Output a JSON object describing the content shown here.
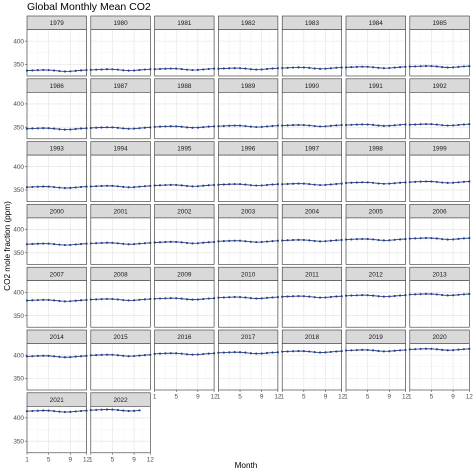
{
  "chart_data": {
    "type": "line",
    "title": "Global Monthly Mean CO2",
    "xlabel": "Month",
    "ylabel": "CO2 mole fraction (ppm)",
    "x_ticks": [
      1,
      5,
      9,
      12
    ],
    "y_ticks": [
      350,
      400
    ],
    "xlim": [
      1,
      12
    ],
    "ylim": [
      325,
      425
    ],
    "grid": true,
    "facet_by": "year",
    "series_color": "#27408b",
    "months": [
      1,
      2,
      3,
      4,
      5,
      6,
      7,
      8,
      9,
      10,
      11,
      12
    ],
    "series": [
      {
        "name": "1979",
        "values": [
          336.6,
          337.1,
          337.6,
          338.0,
          337.8,
          336.9,
          335.6,
          334.8,
          335.1,
          336.1,
          337.1,
          337.8
        ]
      },
      {
        "name": "1980",
        "values": [
          338.1,
          338.6,
          339.1,
          339.6,
          339.4,
          338.6,
          337.3,
          336.6,
          336.9,
          337.9,
          338.9,
          339.6
        ]
      },
      {
        "name": "1981",
        "values": [
          339.6,
          340.1,
          340.6,
          341.0,
          340.8,
          339.9,
          338.6,
          337.8,
          338.1,
          339.1,
          340.1,
          340.8
        ]
      },
      {
        "name": "1982",
        "values": [
          340.6,
          341.1,
          341.6,
          342.0,
          341.8,
          340.9,
          339.6,
          338.8,
          339.1,
          340.1,
          341.1,
          341.8
        ]
      },
      {
        "name": "1983",
        "values": [
          342.1,
          342.6,
          343.2,
          343.6,
          343.4,
          342.5,
          341.2,
          340.4,
          340.7,
          341.7,
          342.7,
          343.4
        ]
      },
      {
        "name": "1984",
        "values": [
          343.6,
          344.1,
          344.6,
          345.0,
          344.8,
          343.9,
          342.6,
          341.8,
          342.1,
          343.1,
          344.1,
          344.8
        ]
      },
      {
        "name": "1985",
        "values": [
          345.1,
          345.6,
          346.1,
          346.5,
          346.3,
          345.4,
          344.1,
          343.3,
          343.6,
          344.6,
          345.6,
          346.3
        ]
      },
      {
        "name": "1986",
        "values": [
          346.6,
          347.1,
          347.6,
          348.0,
          347.8,
          346.9,
          345.6,
          344.8,
          345.1,
          346.1,
          347.1,
          347.8
        ]
      },
      {
        "name": "1987",
        "values": [
          348.3,
          348.8,
          349.3,
          349.7,
          349.5,
          348.6,
          347.3,
          346.5,
          346.8,
          347.8,
          348.8,
          349.5
        ]
      },
      {
        "name": "1988",
        "values": [
          350.6,
          351.1,
          351.6,
          352.0,
          351.8,
          350.9,
          349.6,
          348.8,
          349.1,
          350.1,
          351.1,
          351.8
        ]
      },
      {
        "name": "1989",
        "values": [
          352.1,
          352.6,
          353.1,
          353.5,
          353.3,
          352.4,
          351.1,
          350.3,
          350.6,
          351.6,
          352.6,
          353.3
        ]
      },
      {
        "name": "1990",
        "values": [
          353.4,
          353.9,
          354.4,
          354.8,
          354.6,
          353.7,
          352.4,
          351.6,
          351.9,
          352.9,
          353.9,
          354.6
        ]
      },
      {
        "name": "1991",
        "values": [
          354.6,
          355.1,
          355.6,
          356.0,
          355.8,
          354.9,
          353.6,
          352.8,
          353.1,
          354.1,
          355.1,
          355.8
        ]
      },
      {
        "name": "1992",
        "values": [
          355.3,
          355.8,
          356.3,
          356.7,
          356.5,
          355.6,
          354.3,
          353.5,
          353.8,
          354.8,
          355.8,
          356.5
        ]
      },
      {
        "name": "1993",
        "values": [
          356.0,
          356.5,
          357.0,
          357.4,
          357.2,
          356.3,
          355.0,
          354.2,
          354.5,
          355.5,
          356.5,
          357.2
        ]
      },
      {
        "name": "1994",
        "values": [
          357.6,
          358.1,
          358.6,
          359.0,
          358.8,
          357.9,
          356.6,
          355.8,
          356.1,
          357.1,
          358.1,
          358.8
        ]
      },
      {
        "name": "1995",
        "values": [
          359.6,
          360.1,
          360.6,
          361.0,
          360.8,
          359.9,
          358.6,
          357.8,
          358.1,
          359.1,
          360.1,
          360.8
        ]
      },
      {
        "name": "1996",
        "values": [
          361.3,
          361.8,
          362.3,
          362.7,
          362.5,
          361.6,
          360.3,
          359.5,
          359.8,
          360.8,
          361.8,
          362.5
        ]
      },
      {
        "name": "1997",
        "values": [
          362.4,
          362.9,
          363.4,
          363.8,
          363.6,
          362.7,
          361.4,
          360.6,
          360.9,
          361.9,
          362.9,
          363.6
        ]
      },
      {
        "name": "1998",
        "values": [
          365.1,
          365.6,
          366.1,
          366.5,
          366.3,
          365.4,
          364.1,
          363.3,
          363.6,
          364.6,
          365.6,
          366.3
        ]
      },
      {
        "name": "1999",
        "values": [
          367.0,
          367.5,
          368.0,
          368.4,
          368.2,
          367.3,
          366.0,
          365.2,
          365.5,
          366.5,
          367.5,
          368.2
        ]
      },
      {
        "name": "2000",
        "values": [
          368.4,
          368.9,
          369.4,
          369.8,
          369.6,
          368.7,
          367.4,
          366.6,
          366.9,
          367.9,
          368.9,
          369.6
        ]
      },
      {
        "name": "2001",
        "values": [
          370.1,
          370.6,
          371.1,
          371.5,
          371.3,
          370.4,
          369.1,
          368.3,
          368.6,
          369.6,
          370.6,
          371.3
        ]
      },
      {
        "name": "2002",
        "values": [
          372.1,
          372.6,
          373.1,
          373.5,
          373.3,
          372.4,
          371.1,
          370.3,
          370.6,
          371.6,
          372.6,
          373.3
        ]
      },
      {
        "name": "2003",
        "values": [
          374.6,
          375.1,
          375.6,
          376.0,
          375.8,
          374.9,
          373.6,
          372.8,
          373.1,
          374.1,
          375.1,
          375.8
        ]
      },
      {
        "name": "2004",
        "values": [
          376.4,
          376.9,
          377.4,
          377.8,
          377.6,
          376.7,
          375.4,
          374.6,
          374.9,
          375.9,
          376.9,
          377.6
        ]
      },
      {
        "name": "2005",
        "values": [
          378.4,
          378.9,
          379.4,
          379.8,
          379.6,
          378.7,
          377.4,
          376.6,
          376.9,
          377.9,
          378.9,
          379.6
        ]
      },
      {
        "name": "2006",
        "values": [
          380.4,
          380.9,
          381.4,
          381.8,
          381.6,
          380.7,
          379.4,
          378.6,
          378.9,
          379.9,
          380.9,
          381.6
        ]
      },
      {
        "name": "2007",
        "values": [
          382.4,
          382.9,
          383.4,
          383.8,
          383.6,
          382.7,
          381.4,
          380.6,
          380.9,
          381.9,
          382.9,
          383.6
        ]
      },
      {
        "name": "2008",
        "values": [
          384.4,
          384.9,
          385.4,
          385.8,
          385.6,
          384.7,
          383.4,
          382.6,
          382.9,
          383.9,
          384.9,
          385.6
        ]
      },
      {
        "name": "2009",
        "values": [
          386.1,
          386.6,
          387.1,
          387.5,
          387.3,
          386.4,
          385.1,
          384.3,
          384.6,
          385.6,
          386.6,
          387.3
        ]
      },
      {
        "name": "2010",
        "values": [
          388.5,
          389.0,
          389.5,
          389.9,
          389.7,
          388.8,
          387.5,
          386.7,
          387.0,
          388.0,
          389.0,
          389.7
        ]
      },
      {
        "name": "2011",
        "values": [
          390.5,
          391.0,
          391.5,
          391.9,
          391.7,
          390.8,
          389.5,
          388.7,
          389.0,
          390.0,
          391.0,
          391.7
        ]
      },
      {
        "name": "2012",
        "values": [
          392.6,
          393.1,
          393.6,
          394.0,
          393.8,
          392.9,
          391.6,
          390.8,
          391.1,
          392.1,
          393.1,
          393.8
        ]
      },
      {
        "name": "2013",
        "values": [
          395.2,
          395.7,
          396.2,
          396.6,
          396.4,
          395.5,
          394.2,
          393.4,
          393.7,
          394.7,
          395.7,
          396.4
        ]
      },
      {
        "name": "2014",
        "values": [
          397.2,
          397.7,
          398.2,
          398.6,
          398.4,
          397.5,
          396.2,
          395.4,
          395.7,
          396.7,
          397.7,
          398.4
        ]
      },
      {
        "name": "2015",
        "values": [
          399.5,
          400.0,
          400.5,
          400.9,
          400.7,
          399.8,
          398.5,
          397.7,
          398.0,
          399.0,
          400.0,
          400.7
        ]
      },
      {
        "name": "2016",
        "values": [
          402.8,
          403.3,
          403.8,
          404.2,
          404.0,
          403.1,
          401.8,
          401.0,
          401.3,
          402.3,
          403.3,
          404.0
        ]
      },
      {
        "name": "2017",
        "values": [
          405.0,
          405.5,
          406.0,
          406.4,
          406.2,
          405.3,
          404.0,
          403.2,
          403.5,
          404.5,
          405.5,
          406.2
        ]
      },
      {
        "name": "2018",
        "values": [
          407.4,
          407.9,
          408.4,
          408.8,
          408.6,
          407.7,
          406.4,
          405.6,
          405.9,
          406.9,
          407.9,
          408.6
        ]
      },
      {
        "name": "2019",
        "values": [
          409.9,
          410.4,
          410.9,
          411.3,
          411.1,
          410.2,
          408.9,
          408.1,
          408.4,
          409.4,
          410.4,
          411.1
        ]
      },
      {
        "name": "2020",
        "values": [
          412.3,
          412.8,
          413.3,
          413.7,
          413.5,
          412.6,
          411.3,
          410.5,
          410.8,
          411.8,
          412.8,
          413.5
        ]
      },
      {
        "name": "2021",
        "values": [
          414.5,
          415.0,
          415.5,
          415.9,
          415.7,
          414.8,
          413.5,
          412.7,
          413.0,
          414.0,
          415.0,
          415.7
        ]
      },
      {
        "name": "2022",
        "values": [
          416.7,
          417.2,
          417.7,
          418.1,
          417.9,
          417.0,
          415.7,
          414.9,
          415.2,
          416.2
        ]
      }
    ]
  }
}
